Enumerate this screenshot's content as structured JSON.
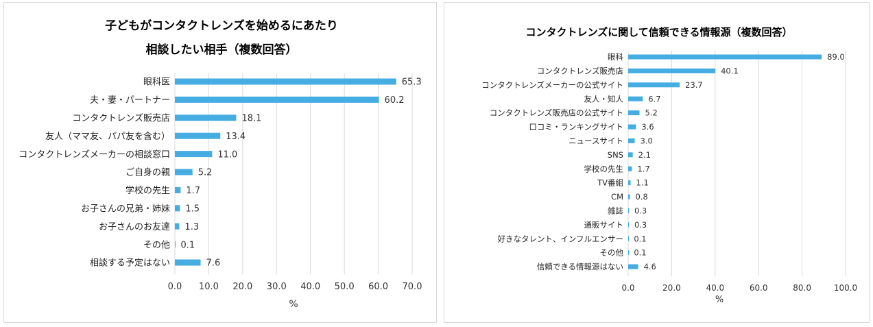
{
  "chart_data": [
    {
      "type": "bar",
      "orientation": "horizontal",
      "title": "子どもがコンタクトレンズを始めるにあたり",
      "subtitle": "相談したい相手（複数回答）",
      "xlabel": "%",
      "ylabel": "",
      "xlim": [
        0,
        70
      ],
      "xticks": [
        "0.0",
        "10.0",
        "20.0",
        "30.0",
        "40.0",
        "50.0",
        "60.0",
        "70.0"
      ],
      "categories": [
        "眼科医",
        "夫・妻・パートナー",
        "コンタクトレンズ販売店",
        "友人（ママ友、パパ友を含む）",
        "コンタクトレンズメーカーの相談窓口",
        "ご自身の親",
        "学校の先生",
        "お子さんの兄弟・姉妹",
        "お子さんのお友達",
        "その他",
        "相談する予定はない"
      ],
      "values": [
        65.3,
        60.2,
        18.1,
        13.4,
        11.0,
        5.2,
        1.7,
        1.5,
        1.3,
        0.1,
        7.6
      ],
      "labels": [
        "65.3",
        "60.2",
        "18.1",
        "13.4",
        "11.0",
        "5.2",
        "1.7",
        "1.5",
        "1.3",
        "0.1",
        "7.6"
      ],
      "grid": true,
      "legend": "none",
      "color": "#45ade1"
    },
    {
      "type": "bar",
      "orientation": "horizontal",
      "title": "コンタクトレンズに関して信頼できる情報源（複数回答）",
      "subtitle": "",
      "xlabel": "%",
      "ylabel": "",
      "xlim": [
        0,
        100
      ],
      "xticks": [
        "0.0",
        "20.0",
        "40.0",
        "60.0",
        "80.0",
        "100.0"
      ],
      "categories": [
        "眼科",
        "コンタクトレンズ販売店",
        "コンタクトレンズメーカーの公式サイト",
        "友人・知人",
        "コンタクトレンズ販売店の公式サイト",
        "口コミ・ランキングサイト",
        "ニュースサイト",
        "SNS",
        "学校の先生",
        "TV番組",
        "CM",
        "雑誌",
        "通販サイト",
        "好きなタレント、インフルエンサー",
        "その他",
        "信頼できる情報源はない"
      ],
      "values": [
        89.0,
        40.1,
        23.7,
        6.7,
        5.2,
        3.6,
        3.0,
        2.1,
        1.7,
        1.1,
        0.8,
        0.3,
        0.3,
        0.1,
        0.1,
        4.6
      ],
      "labels": [
        "89.0",
        "40.1",
        "23.7",
        "6.7",
        "5.2",
        "3.6",
        "3.0",
        "2.1",
        "1.7",
        "1.1",
        "0.8",
        "0.3",
        "0.3",
        "0.1",
        "0.1",
        "4.6"
      ],
      "grid": true,
      "legend": "none",
      "color": "#45ade1"
    }
  ]
}
